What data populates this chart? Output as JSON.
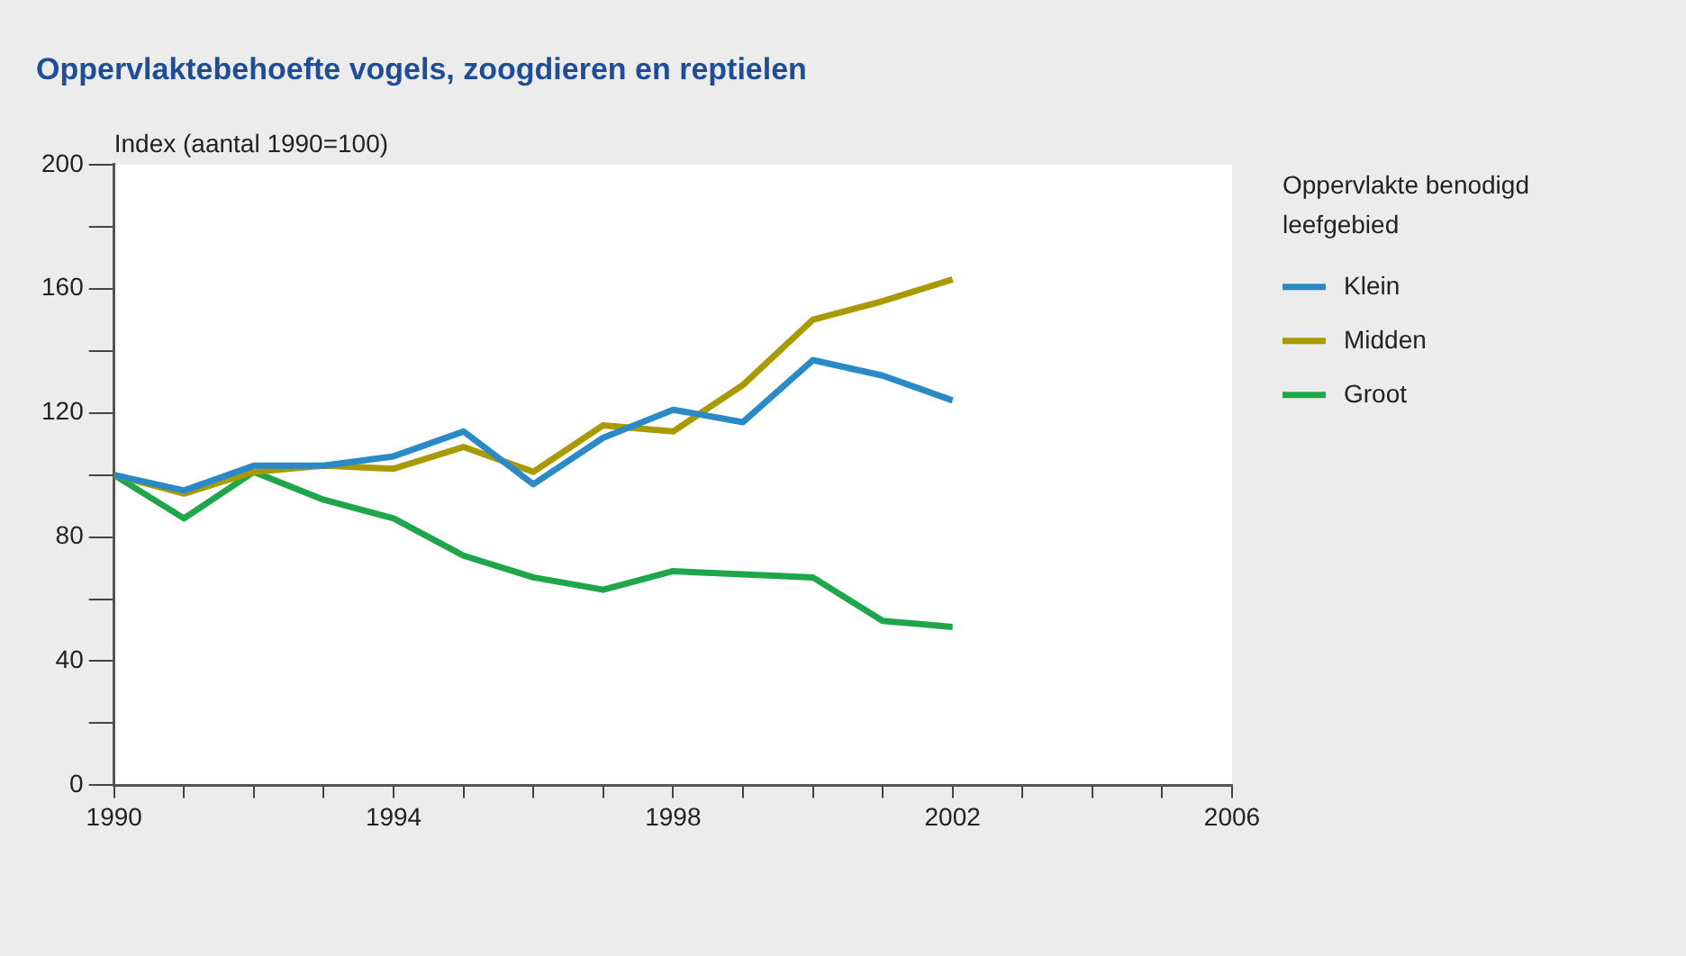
{
  "chart_data": {
    "type": "line",
    "title": "Oppervlaktebehoefte vogels, zoogdieren en reptielen",
    "ylabel": "Index (aantal 1990=100)",
    "legend_title": "Oppervlakte benodigd leefgebied",
    "x": [
      1990,
      1991,
      1992,
      1993,
      1994,
      1995,
      1996,
      1997,
      1998,
      1999,
      2000,
      2001,
      2002
    ],
    "series": [
      {
        "name": "Klein",
        "color": "#2a8ac8",
        "values": [
          100,
          95,
          103,
          103,
          106,
          114,
          97,
          112,
          121,
          117,
          137,
          132,
          124
        ]
      },
      {
        "name": "Midden",
        "color": "#a89a00",
        "values": [
          100,
          94,
          101,
          103,
          102,
          109,
          101,
          116,
          114,
          129,
          150,
          156,
          163
        ]
      },
      {
        "name": "Groot",
        "color": "#1fa64a",
        "values": [
          100,
          86,
          101,
          92,
          86,
          74,
          67,
          63,
          69,
          68,
          67,
          53,
          51
        ]
      }
    ],
    "xlim": [
      1990,
      2006
    ],
    "xticks": [
      1990,
      {
        "value": 1991,
        "label": null
      },
      {
        "value": 1992,
        "label": null
      },
      {
        "value": 1993,
        "label": null
      },
      1994,
      {
        "value": 1995,
        "label": null
      },
      {
        "value": 1996,
        "label": null
      },
      {
        "value": 1997,
        "label": null
      },
      1998,
      {
        "value": 1999,
        "label": null
      },
      {
        "value": 2000,
        "label": null
      },
      {
        "value": 2001,
        "label": null
      },
      2002,
      {
        "value": 2003,
        "label": null
      },
      {
        "value": 2004,
        "label": null
      },
      {
        "value": 2005,
        "label": null
      },
      2006
    ],
    "ylim": [
      0,
      200
    ],
    "yticks": [
      0,
      {
        "value": 20,
        "label": null
      },
      40,
      {
        "value": 60,
        "label": null
      },
      80,
      {
        "value": 100,
        "label": null
      },
      120,
      {
        "value": 140,
        "label": null
      },
      160,
      {
        "value": 180,
        "label": null
      },
      200
    ],
    "grid": false,
    "legend": "right",
    "marker": "none",
    "line_style": "solid"
  }
}
